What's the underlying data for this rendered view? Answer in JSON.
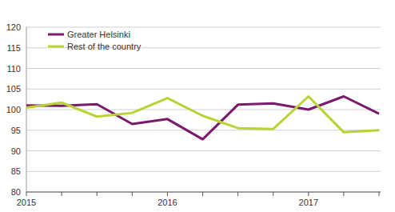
{
  "chart_data": {
    "type": "line",
    "categories": [
      "2015",
      null,
      null,
      null,
      "2016",
      null,
      null,
      null,
      "2017",
      null,
      null
    ],
    "series": [
      {
        "name": "Greater Helsinki",
        "color": "#7a1a6c",
        "values": [
          101.0,
          100.9,
          101.3,
          96.5,
          97.7,
          92.8,
          101.2,
          101.5,
          100.0,
          103.2,
          99.0
        ]
      },
      {
        "name": "Rest of the country",
        "color": "#b9d334",
        "values": [
          100.5,
          101.7,
          98.3,
          99.2,
          102.8,
          98.5,
          95.5,
          95.3,
          103.2,
          94.5,
          95.0
        ]
      }
    ],
    "ylim": [
      80,
      120
    ],
    "yticks": [
      80,
      85,
      90,
      95,
      100,
      105,
      110,
      115,
      120
    ],
    "grid": true,
    "legend": "top-left"
  }
}
